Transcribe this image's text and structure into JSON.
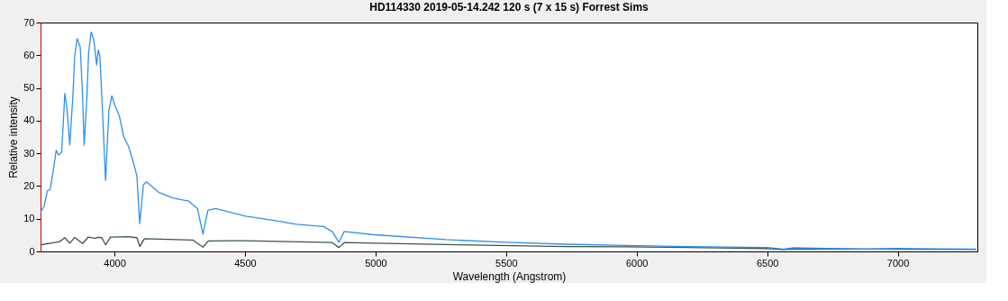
{
  "chart_data": {
    "type": "line",
    "title": "HD114330   2019-05-14.242   120 s (7 x 15 s)   Forrest Sims",
    "xlabel": "Wavelength (Angstrom)",
    "ylabel": "Relative intensity",
    "xlim": [
      3717,
      7305
    ],
    "ylim": [
      0,
      70
    ],
    "xticks": [
      4000,
      4500,
      5000,
      5500,
      6000,
      6500,
      7000
    ],
    "yticks": [
      0,
      10,
      20,
      30,
      40,
      50,
      60,
      70
    ],
    "grid": false,
    "legend": false,
    "marker": "none",
    "line_style": "solid",
    "series": [
      {
        "color": "#3c5450",
        "x": [
          3717,
          3760,
          3790,
          3810,
          3829,
          3848,
          3878,
          3900,
          3925,
          3938,
          3952,
          3966,
          3985,
          4050,
          4086,
          4097,
          4115,
          4300,
          4339,
          4360,
          4500,
          4800,
          4834,
          4860,
          4880,
          5271,
          5731,
          5961,
          6500,
          6563,
          6600,
          7000,
          7300
        ],
        "values": [
          2.0,
          2.6,
          3.0,
          4.2,
          2.5,
          4.3,
          2.4,
          4.4,
          4.0,
          4.3,
          4.2,
          2.0,
          4.4,
          4.5,
          4.2,
          1.5,
          3.9,
          3.5,
          1.3,
          3.2,
          3.3,
          2.8,
          2.7,
          1.2,
          2.7,
          2.1,
          1.5,
          1.4,
          0.9,
          0.5,
          0.8,
          0.7,
          0.6
        ]
      },
      {
        "color": "#2f8fef",
        "x": [
          3717,
          3731,
          3743,
          3754,
          3766,
          3777,
          3786,
          3798,
          3810,
          3818,
          3829,
          3841,
          3848,
          3857,
          3869,
          3878,
          3884,
          3895,
          3901,
          3911,
          3921,
          3932,
          3938,
          3944,
          3952,
          3966,
          3979,
          3990,
          4002,
          4019,
          4036,
          4053,
          4071,
          4086,
          4097,
          4111,
          4123,
          4169,
          4226,
          4284,
          4318,
          4339,
          4358,
          4387,
          4502,
          4617,
          4697,
          4801,
          4834,
          4860,
          4880,
          4995,
          5271,
          5501,
          5731,
          5961,
          6200,
          6500,
          6563,
          6600,
          6870,
          7000,
          7300
        ],
        "values": [
          12,
          13.9,
          18.5,
          19,
          24.9,
          30.9,
          29.5,
          30.4,
          48.3,
          44,
          32.5,
          47.8,
          59.8,
          65.1,
          62.5,
          47.8,
          32.5,
          47.8,
          60.7,
          67.1,
          64.8,
          57,
          61.6,
          59.8,
          46.9,
          21.7,
          43.2,
          47.6,
          44.6,
          41.4,
          35,
          32.3,
          27.7,
          23.1,
          8.5,
          20.4,
          21.3,
          18.1,
          16.3,
          15.4,
          13.1,
          5.3,
          12.6,
          13.1,
          10.8,
          9.4,
          8.3,
          7.6,
          6.1,
          2.8,
          6.1,
          5.1,
          3.6,
          2.8,
          2.2,
          1.8,
          1.5,
          1.2,
          0.7,
          1.1,
          0.7,
          0.9,
          0.7
        ]
      }
    ]
  }
}
